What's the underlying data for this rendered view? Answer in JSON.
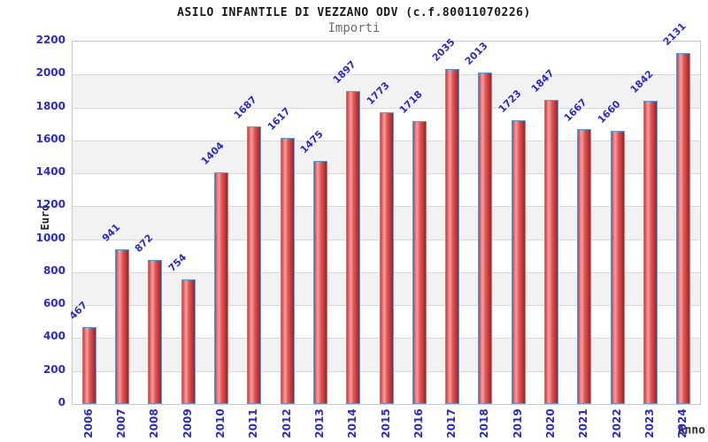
{
  "chart_data": {
    "type": "bar",
    "title": "ASILO INFANTILE DI VEZZANO ODV (c.f.80011070226)",
    "subtitle": "Importi",
    "xlabel": "Anno",
    "ylabel": "Euro",
    "categories": [
      "2006",
      "2007",
      "2008",
      "2009",
      "2010",
      "2011",
      "2012",
      "2013",
      "2014",
      "2015",
      "2016",
      "2017",
      "2018",
      "2019",
      "2020",
      "2021",
      "2022",
      "2023",
      "2024"
    ],
    "values": [
      467,
      941,
      872,
      754,
      1404,
      1687,
      1617,
      1475,
      1897,
      1773,
      1718,
      2035,
      2013,
      1723,
      1847,
      1667,
      1660,
      1842,
      2131
    ],
    "ylim": [
      0,
      2200
    ],
    "ytick_step": 200,
    "grid": true,
    "legend": "none",
    "band_fill_alternate": true,
    "colors": {
      "label_blue": "#2b2bcc",
      "bar_border": "#5b9bd5",
      "bar_gradient_left": "#de3a3a",
      "bar_gradient_highlight": "#f2a0a0",
      "bar_gradient_mid": "#e05555",
      "bar_gradient_right": "#a81f1f",
      "band_gray": "#f2f2f2",
      "gridline": "#d9d9d9",
      "plot_border": "#c8c8c8",
      "title_color": "#1a1a1a",
      "subtitle_color": "#6e6e6e",
      "axis_title_color": "#222222"
    }
  }
}
